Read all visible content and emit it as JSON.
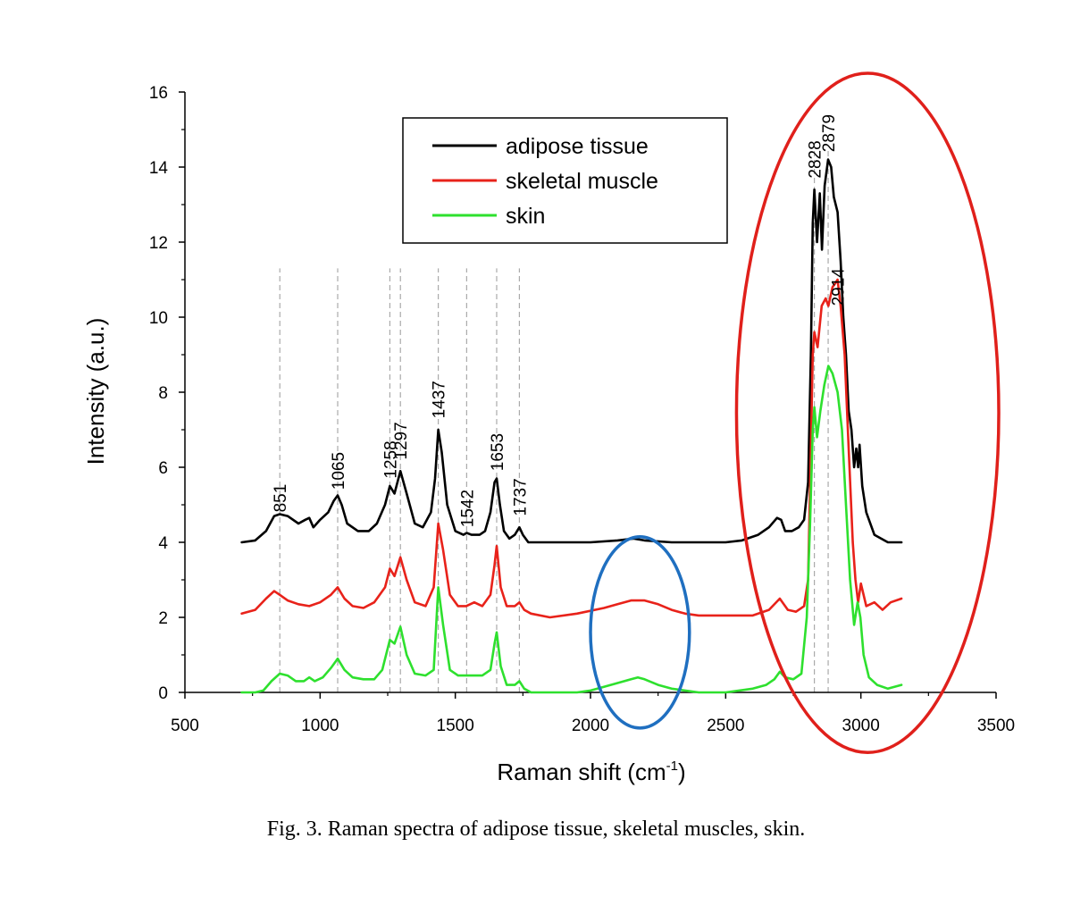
{
  "caption": "Fig. 3. Raman spectra of adipose tissue, skeletal muscles, skin.",
  "chart_data": {
    "type": "line",
    "title": "",
    "xlabel": "Raman shift (cm",
    "xlabel_sup": "-1",
    "xlabel_end": ")",
    "ylabel": "Intensity (a.u.)",
    "xlim": [
      500,
      3500
    ],
    "ylim": [
      0,
      16
    ],
    "xticks": [
      500,
      1000,
      1500,
      2000,
      2500,
      3000,
      3500
    ],
    "yticks": [
      0,
      2,
      4,
      6,
      8,
      10,
      12,
      14,
      16
    ],
    "grid": false,
    "legend_position": "top-center",
    "peak_labels": [
      {
        "text": "851",
        "x": 851,
        "y": 4.8
      },
      {
        "text": "1065",
        "x": 1065,
        "y": 5.4
      },
      {
        "text": "1258",
        "x": 1258,
        "y": 5.7
      },
      {
        "text": "1297",
        "x": 1297,
        "y": 6.2
      },
      {
        "text": "1437",
        "x": 1437,
        "y": 7.3
      },
      {
        "text": "1542",
        "x": 1542,
        "y": 4.4
      },
      {
        "text": "1653",
        "x": 1653,
        "y": 5.9
      },
      {
        "text": "1737",
        "x": 1737,
        "y": 4.7
      },
      {
        "text": "2828",
        "x": 2828,
        "y": 13.7
      },
      {
        "text": "2879",
        "x": 2879,
        "y": 14.4
      },
      {
        "text": "2914",
        "x": 2914,
        "y": 10.3
      }
    ],
    "reference_lines_x": [
      851,
      1065,
      1258,
      1297,
      1437,
      1542,
      1653,
      1737,
      2828,
      2879
    ],
    "annotations": [
      {
        "shape": "ellipse",
        "color": "#1f6fc0",
        "cx": 2183,
        "cy": 1.6,
        "rx": 183,
        "ry": 2.55
      },
      {
        "shape": "ellipse",
        "color": "#e0201b",
        "cx": 3025,
        "cy": 7.45,
        "rx": 485,
        "ry": 9.05
      }
    ],
    "series": [
      {
        "name": "adipose tissue",
        "color": "#000000",
        "x": [
          710,
          760,
          800,
          830,
          851,
          880,
          920,
          945,
          960,
          975,
          1000,
          1030,
          1050,
          1065,
          1080,
          1100,
          1140,
          1180,
          1210,
          1240,
          1258,
          1275,
          1297,
          1320,
          1350,
          1380,
          1410,
          1425,
          1437,
          1450,
          1470,
          1500,
          1530,
          1542,
          1560,
          1590,
          1610,
          1630,
          1645,
          1653,
          1665,
          1680,
          1700,
          1720,
          1737,
          1750,
          1770,
          1800,
          1900,
          2000,
          2100,
          2160,
          2200,
          2300,
          2400,
          2500,
          2560,
          2620,
          2660,
          2690,
          2705,
          2720,
          2745,
          2770,
          2790,
          2805,
          2815,
          2822,
          2828,
          2838,
          2848,
          2856,
          2866,
          2879,
          2890,
          2900,
          2914,
          2925,
          2935,
          2945,
          2955,
          2965,
          2975,
          2983,
          2990,
          2995,
          3005,
          3020,
          3050,
          3100,
          3150
        ],
        "y": [
          4.0,
          4.05,
          4.3,
          4.7,
          4.75,
          4.7,
          4.5,
          4.6,
          4.65,
          4.4,
          4.6,
          4.8,
          5.1,
          5.25,
          5.0,
          4.5,
          4.3,
          4.3,
          4.5,
          5.0,
          5.5,
          5.3,
          5.9,
          5.3,
          4.5,
          4.4,
          4.8,
          5.7,
          7.0,
          6.4,
          5.0,
          4.3,
          4.2,
          4.25,
          4.2,
          4.2,
          4.3,
          4.8,
          5.6,
          5.7,
          5.0,
          4.3,
          4.1,
          4.2,
          4.4,
          4.2,
          4.0,
          4.0,
          4.0,
          4.0,
          4.05,
          4.1,
          4.05,
          4.0,
          4.0,
          4.0,
          4.05,
          4.2,
          4.4,
          4.65,
          4.6,
          4.3,
          4.3,
          4.4,
          4.6,
          5.6,
          9.0,
          12.5,
          13.4,
          12.0,
          13.3,
          11.8,
          13.5,
          14.2,
          14.0,
          13.2,
          12.8,
          11.5,
          10.0,
          9.0,
          7.5,
          7.0,
          6.0,
          6.5,
          6.0,
          6.6,
          5.5,
          4.8,
          4.2,
          4.0,
          4.0
        ]
      },
      {
        "name": "skeletal muscle",
        "color": "#e8221a",
        "x": [
          710,
          760,
          800,
          830,
          851,
          880,
          920,
          960,
          1000,
          1040,
          1065,
          1090,
          1120,
          1160,
          1200,
          1240,
          1258,
          1275,
          1297,
          1320,
          1350,
          1390,
          1420,
          1437,
          1455,
          1480,
          1510,
          1540,
          1570,
          1600,
          1630,
          1645,
          1653,
          1668,
          1690,
          1720,
          1737,
          1755,
          1780,
          1850,
          1950,
          2050,
          2100,
          2150,
          2200,
          2250,
          2300,
          2350,
          2400,
          2500,
          2600,
          2660,
          2700,
          2730,
          2760,
          2790,
          2805,
          2815,
          2822,
          2828,
          2840,
          2855,
          2870,
          2880,
          2895,
          2905,
          2914,
          2925,
          2940,
          2955,
          2970,
          2980,
          2990,
          3000,
          3020,
          3050,
          3080,
          3110,
          3150
        ],
        "y": [
          2.1,
          2.2,
          2.5,
          2.7,
          2.6,
          2.45,
          2.35,
          2.3,
          2.4,
          2.6,
          2.8,
          2.5,
          2.3,
          2.25,
          2.4,
          2.8,
          3.3,
          3.1,
          3.6,
          3.0,
          2.4,
          2.3,
          2.8,
          4.5,
          3.8,
          2.6,
          2.3,
          2.3,
          2.4,
          2.3,
          2.6,
          3.4,
          3.9,
          2.8,
          2.3,
          2.3,
          2.4,
          2.2,
          2.1,
          2.0,
          2.1,
          2.25,
          2.35,
          2.45,
          2.45,
          2.35,
          2.2,
          2.1,
          2.05,
          2.05,
          2.05,
          2.2,
          2.5,
          2.2,
          2.15,
          2.3,
          3.0,
          6.5,
          9.0,
          9.6,
          9.2,
          10.3,
          10.5,
          10.3,
          10.8,
          10.9,
          11.0,
          10.3,
          9.0,
          6.5,
          4.0,
          3.0,
          2.4,
          2.9,
          2.3,
          2.4,
          2.2,
          2.4,
          2.5
        ]
      },
      {
        "name": "skin",
        "color": "#2ee02e",
        "x": [
          710,
          760,
          790,
          820,
          851,
          880,
          910,
          940,
          960,
          980,
          1010,
          1040,
          1065,
          1090,
          1120,
          1160,
          1200,
          1230,
          1258,
          1275,
          1297,
          1320,
          1350,
          1390,
          1420,
          1437,
          1455,
          1480,
          1510,
          1540,
          1570,
          1600,
          1630,
          1645,
          1653,
          1668,
          1690,
          1720,
          1737,
          1755,
          1780,
          1850,
          1900,
          1950,
          2000,
          2050,
          2100,
          2150,
          2175,
          2200,
          2250,
          2300,
          2350,
          2400,
          2500,
          2600,
          2650,
          2680,
          2700,
          2720,
          2750,
          2780,
          2800,
          2812,
          2822,
          2828,
          2838,
          2850,
          2865,
          2880,
          2895,
          2914,
          2930,
          2945,
          2960,
          2975,
          2988,
          2998,
          3010,
          3030,
          3060,
          3100,
          3150
        ],
        "y": [
          0.0,
          0.0,
          0.05,
          0.3,
          0.5,
          0.45,
          0.3,
          0.3,
          0.4,
          0.3,
          0.4,
          0.65,
          0.9,
          0.6,
          0.4,
          0.35,
          0.35,
          0.6,
          1.4,
          1.3,
          1.75,
          1.0,
          0.5,
          0.45,
          0.6,
          2.8,
          1.8,
          0.6,
          0.45,
          0.45,
          0.45,
          0.45,
          0.6,
          1.3,
          1.6,
          0.7,
          0.2,
          0.2,
          0.3,
          0.1,
          0.0,
          0.0,
          0.0,
          0.0,
          0.05,
          0.15,
          0.25,
          0.35,
          0.4,
          0.35,
          0.2,
          0.1,
          0.05,
          0.0,
          0.0,
          0.1,
          0.2,
          0.35,
          0.55,
          0.4,
          0.35,
          0.5,
          2.0,
          4.5,
          7.0,
          7.6,
          6.8,
          7.5,
          8.2,
          8.7,
          8.5,
          8.0,
          7.0,
          5.0,
          3.0,
          1.8,
          2.4,
          2.0,
          1.0,
          0.4,
          0.2,
          0.1,
          0.2
        ]
      }
    ]
  }
}
